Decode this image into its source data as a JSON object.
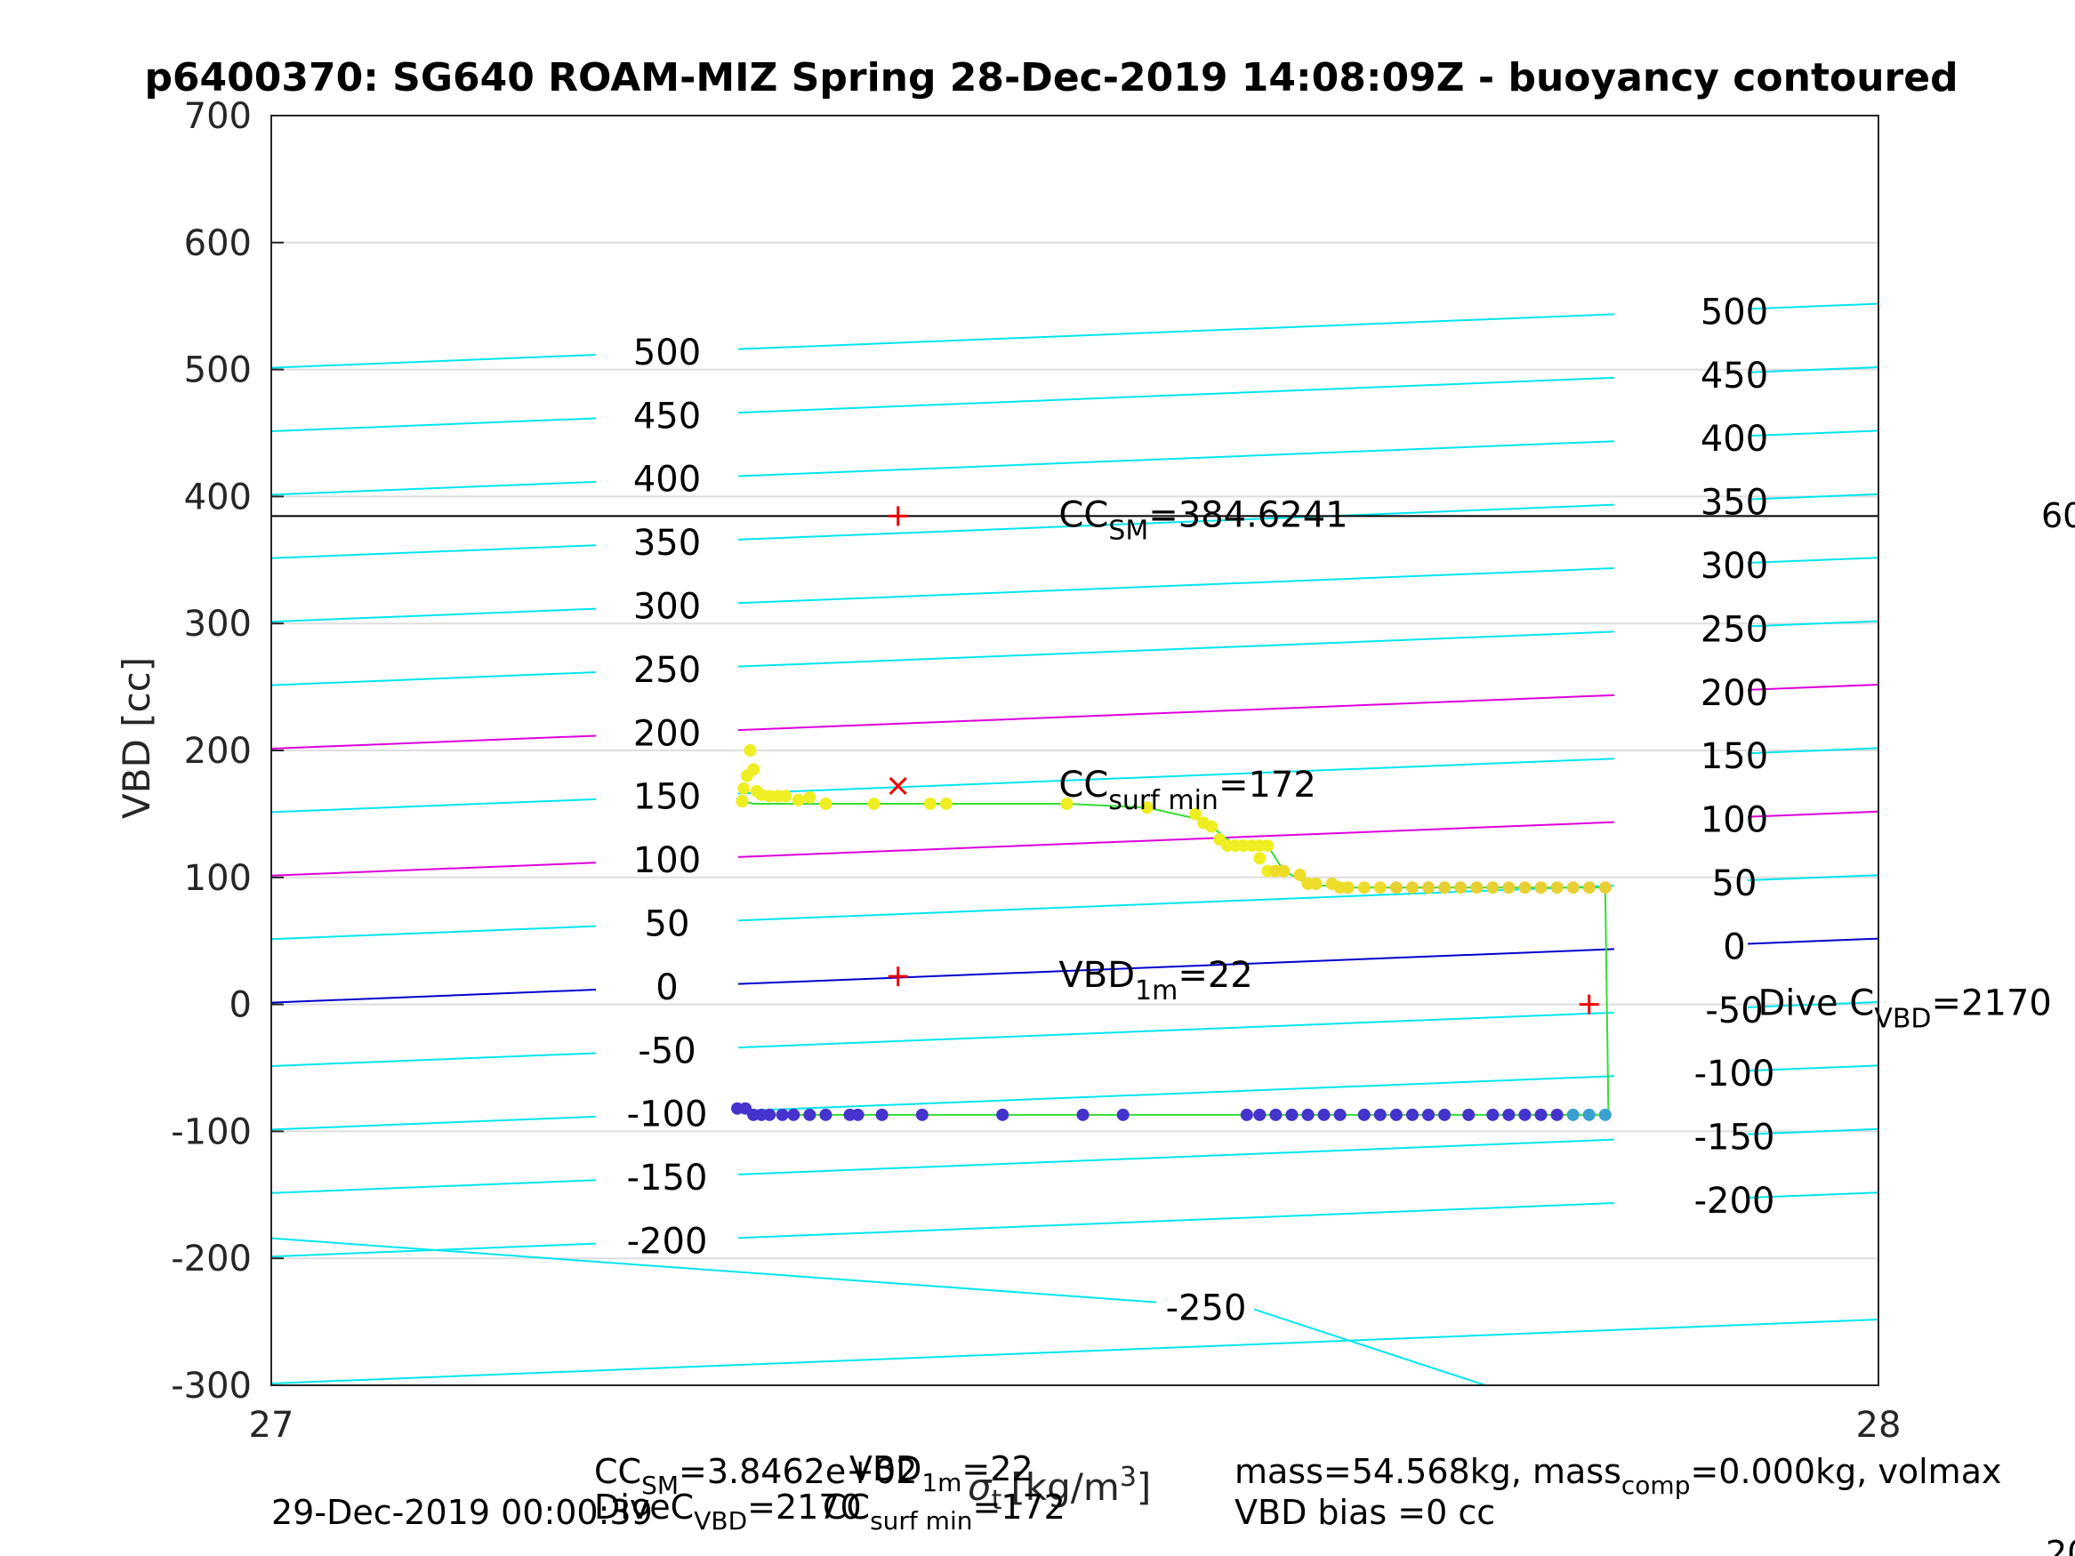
{
  "chart_data": {
    "type": "scatter",
    "title": "p6400370: SG640 ROAM-MIZ Spring 28-Dec-2019 14:08:09Z - buoyancy contoured",
    "xlabel_main": "σ",
    "xlabel_sub": "t",
    "xlabel_unit": "[kg/m",
    "xlabel_unit_sup": "3",
    "xlabel_close": "]",
    "ylabel": "VBD [cc]",
    "xlim": [
      27,
      28
    ],
    "ylim": [
      -300,
      700
    ],
    "x_ticks": [
      "27",
      "28"
    ],
    "y_ticks": [
      "-300",
      "-200",
      "-100",
      "0",
      "100",
      "200",
      "300",
      "400",
      "500",
      "600",
      "700"
    ],
    "grid": true,
    "contour_lines": [
      {
        "level": -300,
        "color": "#00e5ee",
        "label": "",
        "label_left": false,
        "label_right": false
      },
      {
        "level": -250,
        "color": "#00e5ee",
        "label": "-250",
        "label_bottom": true
      },
      {
        "level": -200,
        "color": "#00e5ee",
        "label": "-200"
      },
      {
        "level": -150,
        "color": "#00e5ee",
        "label": "-150"
      },
      {
        "level": -100,
        "color": "#00e5ee",
        "label": "-100"
      },
      {
        "level": -50,
        "color": "#00e5ee",
        "label": "-50"
      },
      {
        "level": 0,
        "color": "#0000cc",
        "label": "0"
      },
      {
        "level": 50,
        "color": "#00e5ee",
        "label": "50"
      },
      {
        "level": 100,
        "color": "#dd00dd",
        "label": "100"
      },
      {
        "level": 150,
        "color": "#00e5ee",
        "label": "150"
      },
      {
        "level": 200,
        "color": "#dd00dd",
        "label": "200"
      },
      {
        "level": 250,
        "color": "#00e5ee",
        "label": "250"
      },
      {
        "level": 300,
        "color": "#00e5ee",
        "label": "300"
      },
      {
        "level": 350,
        "color": "#00e5ee",
        "label": "350"
      },
      {
        "level": 400,
        "color": "#00e5ee",
        "label": "400"
      },
      {
        "level": 450,
        "color": "#00e5ee",
        "label": "450"
      },
      {
        "level": 500,
        "color": "#00e5ee",
        "label": "500"
      }
    ],
    "reference_line": {
      "y": 384.6241,
      "color": "#000000"
    },
    "markers": [
      {
        "x": 27.39,
        "y": 384.6,
        "symbol": "+",
        "color": "#ee0000"
      },
      {
        "x": 27.39,
        "y": 172,
        "symbol": "x",
        "color": "#ee0000"
      },
      {
        "x": 27.39,
        "y": 22,
        "symbol": "+",
        "color": "#ee0000"
      },
      {
        "x": 27.82,
        "y": 0,
        "symbol": "+",
        "color": "#ee0000"
      }
    ],
    "annotations": [
      {
        "base": "CC",
        "sub": "SM",
        "rest": "=384.6241",
        "x": 27.49,
        "y": 384.6
      },
      {
        "base": "CC",
        "sub": "surf min",
        "rest": "=172",
        "x": 27.49,
        "y": 172
      },
      {
        "base": "VBD",
        "sub": "1m",
        "rest": "=22",
        "x": 27.49,
        "y": 22
      },
      {
        "base": "Dive C",
        "sub": "VBD",
        "rest": "=2170",
        "x": 27.925,
        "y": 0
      }
    ],
    "series": [
      {
        "name": "",
        "color": "#eeee22",
        "points": [
          [
            27.293,
            160
          ],
          [
            27.294,
            170
          ],
          [
            27.296,
            180
          ],
          [
            27.298,
            200
          ],
          [
            27.3,
            185
          ],
          [
            27.302,
            168
          ],
          [
            27.305,
            165
          ],
          [
            27.31,
            164
          ],
          [
            27.315,
            164
          ],
          [
            27.32,
            164
          ],
          [
            27.328,
            161
          ],
          [
            27.335,
            163
          ],
          [
            27.345,
            158
          ],
          [
            27.375,
            158
          ],
          [
            27.41,
            158
          ],
          [
            27.42,
            158
          ],
          [
            27.495,
            158
          ],
          [
            27.545,
            155
          ],
          [
            27.575,
            150
          ],
          [
            27.58,
            143
          ],
          [
            27.585,
            140
          ],
          [
            27.59,
            130
          ],
          [
            27.595,
            125
          ],
          [
            27.6,
            125
          ],
          [
            27.605,
            125
          ],
          [
            27.61,
            125
          ],
          [
            27.615,
            125
          ],
          [
            27.62,
            125
          ],
          [
            27.615,
            115
          ],
          [
            27.62,
            105
          ],
          [
            27.625,
            105
          ],
          [
            27.63,
            105
          ],
          [
            27.64,
            102
          ],
          [
            27.645,
            95
          ],
          [
            27.65,
            95
          ],
          [
            27.66,
            95
          ],
          [
            27.665,
            92
          ],
          [
            27.67,
            92
          ],
          [
            27.68,
            92
          ],
          [
            27.69,
            92
          ],
          [
            27.7,
            92
          ],
          [
            27.71,
            92
          ],
          [
            27.72,
            92
          ],
          [
            27.73,
            92
          ],
          [
            27.74,
            92
          ],
          [
            27.75,
            92
          ],
          [
            27.76,
            92
          ],
          [
            27.77,
            92
          ],
          [
            27.78,
            92
          ],
          [
            27.79,
            92
          ],
          [
            27.8,
            92
          ],
          [
            27.81,
            92
          ],
          [
            27.82,
            92
          ],
          [
            27.83,
            92
          ]
        ]
      },
      {
        "name": "",
        "color": "#4433cc",
        "points": [
          [
            27.29,
            -82
          ],
          [
            27.295,
            -82
          ],
          [
            27.3,
            -87
          ],
          [
            27.305,
            -87
          ],
          [
            27.31,
            -87
          ],
          [
            27.318,
            -87
          ],
          [
            27.325,
            -87
          ],
          [
            27.335,
            -87
          ],
          [
            27.345,
            -87
          ],
          [
            27.36,
            -87
          ],
          [
            27.365,
            -87
          ],
          [
            27.38,
            -87
          ],
          [
            27.405,
            -87
          ],
          [
            27.455,
            -87
          ],
          [
            27.505,
            -87
          ],
          [
            27.53,
            -87
          ],
          [
            27.607,
            -87
          ],
          [
            27.615,
            -87
          ],
          [
            27.625,
            -87
          ],
          [
            27.635,
            -87
          ],
          [
            27.645,
            -87
          ],
          [
            27.655,
            -87
          ],
          [
            27.665,
            -87
          ],
          [
            27.68,
            -87
          ],
          [
            27.69,
            -87
          ],
          [
            27.7,
            -87
          ],
          [
            27.71,
            -87
          ],
          [
            27.72,
            -87
          ],
          [
            27.73,
            -87
          ],
          [
            27.745,
            -87
          ],
          [
            27.76,
            -87
          ],
          [
            27.77,
            -87
          ],
          [
            27.78,
            -87
          ],
          [
            27.79,
            -87
          ],
          [
            27.8,
            -87
          ],
          [
            27.81,
            -87
          ],
          [
            27.82,
            -87
          ],
          [
            27.83,
            -87
          ]
        ]
      }
    ],
    "trace_line": {
      "color": "#33dd33",
      "points": [
        [
          27.293,
          160
        ],
        [
          27.3,
          158
        ],
        [
          27.495,
          158
        ],
        [
          27.545,
          155
        ],
        [
          27.58,
          145
        ],
        [
          27.6,
          125
        ],
        [
          27.62,
          125
        ],
        [
          27.63,
          105
        ],
        [
          27.645,
          95
        ],
        [
          27.665,
          92
        ],
        [
          27.83,
          92
        ],
        [
          27.832,
          -87
        ],
        [
          27.3,
          -87
        ],
        [
          27.29,
          -82
        ]
      ]
    },
    "footer": {
      "line1_left_base": "CC",
      "line1_left_sub": "SM",
      "line1_left_rest": "=3.8462e+02",
      "line1_mid_base": "VBD",
      "line1_mid_sub": "1m",
      "line1_mid_rest": "=22",
      "line2_left_base": "DiveC",
      "line2_left_sub": "VBD",
      "line2_left_rest": "=2170",
      "line2_mid_base": "CC",
      "line2_mid_sub": "surf min",
      "line2_mid_rest": "=172",
      "right_line1_a": "mass=54.568kg, mass",
      "right_line1_sub": "comp",
      "right_line1_b": "=0.000kg, volmax",
      "right_line2": "VBD bias =0 cc",
      "timestamp": "29-Dec-2019 00:00:39",
      "cut_right_top": "60",
      "cut_right_bottom": "20"
    }
  }
}
